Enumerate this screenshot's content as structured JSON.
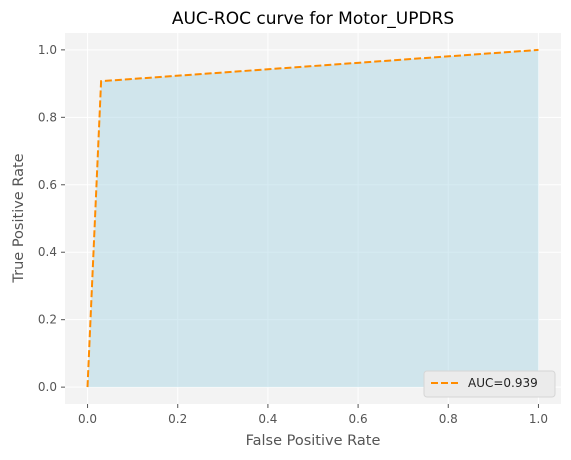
{
  "chart_data": {
    "type": "area",
    "title": "AUC-ROC curve for Motor_UPDRS",
    "xlabel": "False Positive Rate",
    "ylabel": "True Positive Rate",
    "xlim": [
      -0.05,
      1.05
    ],
    "ylim": [
      -0.05,
      1.05
    ],
    "xticks": [
      0.0,
      0.2,
      0.4,
      0.6,
      0.8,
      1.0
    ],
    "yticks": [
      0.0,
      0.2,
      0.4,
      0.6,
      0.8,
      1.0
    ],
    "xtick_labels": [
      "0.0",
      "0.2",
      "0.4",
      "0.6",
      "0.8",
      "1.0"
    ],
    "ytick_labels": [
      "0.0",
      "0.2",
      "0.4",
      "0.6",
      "0.8",
      "1.0"
    ],
    "grid": true,
    "legend_position": "lower-right",
    "series": [
      {
        "name": "AUC=0.939",
        "x": [
          0.0,
          0.03,
          1.0
        ],
        "y": [
          0.0,
          0.907,
          1.0
        ],
        "line_style": "dashed",
        "color": "#ff8c00",
        "fill_color": "#add8e6"
      }
    ]
  },
  "colors": {
    "plot_background": "#f3f3f3",
    "grid": "#ffffff",
    "line": "#ff8c00",
    "fill": "#add8e6"
  }
}
